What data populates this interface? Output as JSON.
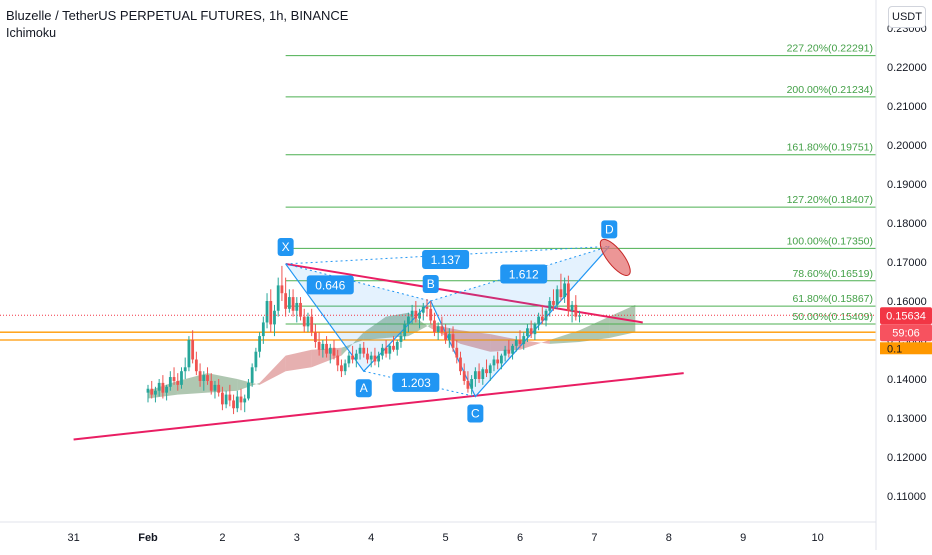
{
  "header": {
    "title": "Bluzelle / TetherUS PERPETUAL FUTURES, 1h, BINANCE",
    "indicator": "Ichimoku",
    "currency": "USDT"
  },
  "price_labels": {
    "last_price": "0.15634",
    "countdown": "59:06",
    "hidden_price": "0.1"
  },
  "colors": {
    "up_candle": "#26a69a",
    "down_candle": "#ef5350",
    "fib_line": "#4caf50",
    "fib_label": "#43a047",
    "trendline": "#e91e63",
    "pattern": "#2196f3",
    "cloud_bull": "#1b5e20",
    "cloud_bear": "#b71c1c",
    "price_tag": "#f23645"
  },
  "chart_data": {
    "type": "candlestick",
    "title": "Bluzelle / TetherUS PERPETUAL FUTURES, 1h, BINANCE",
    "xlabel": "",
    "ylabel": "",
    "ylim": [
      0.104,
      0.232
    ],
    "x_ticks": [
      "31",
      "Feb",
      "2",
      "3",
      "4",
      "5",
      "6",
      "7",
      "8",
      "9",
      "10"
    ],
    "y_ticks": [
      "0.23000",
      "0.22000",
      "0.21000",
      "0.20000",
      "0.19000",
      "0.18000",
      "0.17000",
      "0.16000",
      "0.15000",
      "0.14000",
      "0.13000",
      "0.12000",
      "0.11000"
    ],
    "grid": false,
    "last_price": 0.15634,
    "candles": [
      {
        "d": 0.0,
        "o": 0.1365,
        "h": 0.1385,
        "l": 0.134,
        "c": 0.1375
      },
      {
        "d": 0.05,
        "o": 0.1375,
        "h": 0.1395,
        "l": 0.135,
        "c": 0.136
      },
      {
        "d": 0.1,
        "o": 0.136,
        "h": 0.138,
        "l": 0.134,
        "c": 0.137
      },
      {
        "d": 0.15,
        "o": 0.137,
        "h": 0.14,
        "l": 0.1355,
        "c": 0.139
      },
      {
        "d": 0.2,
        "o": 0.139,
        "h": 0.141,
        "l": 0.135,
        "c": 0.1365
      },
      {
        "d": 0.25,
        "o": 0.1365,
        "h": 0.1385,
        "l": 0.1345,
        "c": 0.138
      },
      {
        "d": 0.3,
        "o": 0.138,
        "h": 0.142,
        "l": 0.137,
        "c": 0.1405
      },
      {
        "d": 0.35,
        "o": 0.1405,
        "h": 0.143,
        "l": 0.1385,
        "c": 0.1395
      },
      {
        "d": 0.4,
        "o": 0.1395,
        "h": 0.1415,
        "l": 0.137,
        "c": 0.1385
      },
      {
        "d": 0.45,
        "o": 0.1385,
        "h": 0.143,
        "l": 0.1375,
        "c": 0.142
      },
      {
        "d": 0.5,
        "o": 0.142,
        "h": 0.1455,
        "l": 0.14,
        "c": 0.143
      },
      {
        "d": 0.55,
        "o": 0.143,
        "h": 0.151,
        "l": 0.142,
        "c": 0.15
      },
      {
        "d": 0.6,
        "o": 0.15,
        "h": 0.1525,
        "l": 0.144,
        "c": 0.145
      },
      {
        "d": 0.65,
        "o": 0.145,
        "h": 0.147,
        "l": 0.141,
        "c": 0.142
      },
      {
        "d": 0.7,
        "o": 0.142,
        "h": 0.144,
        "l": 0.138,
        "c": 0.1395
      },
      {
        "d": 0.75,
        "o": 0.1395,
        "h": 0.142,
        "l": 0.137,
        "c": 0.141
      },
      {
        "d": 0.8,
        "o": 0.141,
        "h": 0.143,
        "l": 0.1385,
        "c": 0.1395
      },
      {
        "d": 0.85,
        "o": 0.1395,
        "h": 0.1415,
        "l": 0.136,
        "c": 0.137
      },
      {
        "d": 0.9,
        "o": 0.137,
        "h": 0.1395,
        "l": 0.135,
        "c": 0.1385
      },
      {
        "d": 0.95,
        "o": 0.1385,
        "h": 0.14,
        "l": 0.1355,
        "c": 0.1365
      },
      {
        "d": 1.0,
        "o": 0.1365,
        "h": 0.138,
        "l": 0.132,
        "c": 0.1335
      },
      {
        "d": 1.05,
        "o": 0.1335,
        "h": 0.137,
        "l": 0.1325,
        "c": 0.136
      },
      {
        "d": 1.1,
        "o": 0.136,
        "h": 0.1385,
        "l": 0.133,
        "c": 0.1345
      },
      {
        "d": 1.15,
        "o": 0.1345,
        "h": 0.136,
        "l": 0.131,
        "c": 0.1325
      },
      {
        "d": 1.2,
        "o": 0.1325,
        "h": 0.137,
        "l": 0.1315,
        "c": 0.1355
      },
      {
        "d": 1.25,
        "o": 0.1355,
        "h": 0.1375,
        "l": 0.132,
        "c": 0.134
      },
      {
        "d": 1.3,
        "o": 0.134,
        "h": 0.136,
        "l": 0.1315,
        "c": 0.135
      },
      {
        "d": 1.35,
        "o": 0.135,
        "h": 0.14,
        "l": 0.1345,
        "c": 0.139
      },
      {
        "d": 1.4,
        "o": 0.139,
        "h": 0.144,
        "l": 0.138,
        "c": 0.143
      },
      {
        "d": 1.45,
        "o": 0.143,
        "h": 0.148,
        "l": 0.142,
        "c": 0.147
      },
      {
        "d": 1.5,
        "o": 0.147,
        "h": 0.152,
        "l": 0.1455,
        "c": 0.151
      },
      {
        "d": 1.55,
        "o": 0.151,
        "h": 0.156,
        "l": 0.149,
        "c": 0.1545
      },
      {
        "d": 1.6,
        "o": 0.1545,
        "h": 0.162,
        "l": 0.153,
        "c": 0.16
      },
      {
        "d": 1.65,
        "o": 0.16,
        "h": 0.163,
        "l": 0.152,
        "c": 0.154
      },
      {
        "d": 1.7,
        "o": 0.154,
        "h": 0.159,
        "l": 0.151,
        "c": 0.1575
      },
      {
        "d": 1.75,
        "o": 0.1575,
        "h": 0.166,
        "l": 0.156,
        "c": 0.164
      },
      {
        "d": 1.8,
        "o": 0.164,
        "h": 0.169,
        "l": 0.16,
        "c": 0.162
      },
      {
        "d": 1.85,
        "o": 0.162,
        "h": 0.166,
        "l": 0.156,
        "c": 0.158
      },
      {
        "d": 1.9,
        "o": 0.158,
        "h": 0.163,
        "l": 0.157,
        "c": 0.161
      },
      {
        "d": 1.95,
        "o": 0.161,
        "h": 0.163,
        "l": 0.156,
        "c": 0.1575
      },
      {
        "d": 2.0,
        "o": 0.1575,
        "h": 0.161,
        "l": 0.1545,
        "c": 0.1595
      },
      {
        "d": 2.05,
        "o": 0.1595,
        "h": 0.161,
        "l": 0.155,
        "c": 0.156
      },
      {
        "d": 2.1,
        "o": 0.156,
        "h": 0.158,
        "l": 0.152,
        "c": 0.1535
      },
      {
        "d": 2.15,
        "o": 0.1535,
        "h": 0.157,
        "l": 0.152,
        "c": 0.156
      },
      {
        "d": 2.2,
        "o": 0.156,
        "h": 0.158,
        "l": 0.151,
        "c": 0.152
      },
      {
        "d": 2.25,
        "o": 0.152,
        "h": 0.154,
        "l": 0.148,
        "c": 0.1495
      },
      {
        "d": 2.3,
        "o": 0.1495,
        "h": 0.152,
        "l": 0.146,
        "c": 0.1475
      },
      {
        "d": 2.35,
        "o": 0.1475,
        "h": 0.15,
        "l": 0.1455,
        "c": 0.149
      },
      {
        "d": 2.4,
        "o": 0.149,
        "h": 0.151,
        "l": 0.1455,
        "c": 0.1465
      },
      {
        "d": 2.45,
        "o": 0.1465,
        "h": 0.149,
        "l": 0.144,
        "c": 0.148
      },
      {
        "d": 2.5,
        "o": 0.148,
        "h": 0.15,
        "l": 0.145,
        "c": 0.146
      },
      {
        "d": 2.55,
        "o": 0.146,
        "h": 0.1475,
        "l": 0.142,
        "c": 0.1435
      },
      {
        "d": 2.6,
        "o": 0.1435,
        "h": 0.145,
        "l": 0.1405,
        "c": 0.142
      },
      {
        "d": 2.65,
        "o": 0.142,
        "h": 0.145,
        "l": 0.141,
        "c": 0.144
      },
      {
        "d": 2.7,
        "o": 0.144,
        "h": 0.147,
        "l": 0.143,
        "c": 0.146
      },
      {
        "d": 2.75,
        "o": 0.146,
        "h": 0.1485,
        "l": 0.144,
        "c": 0.145
      },
      {
        "d": 2.8,
        "o": 0.145,
        "h": 0.1475,
        "l": 0.143,
        "c": 0.1465
      },
      {
        "d": 2.85,
        "o": 0.1465,
        "h": 0.149,
        "l": 0.145,
        "c": 0.148
      },
      {
        "d": 2.9,
        "o": 0.148,
        "h": 0.1495,
        "l": 0.1455,
        "c": 0.1465
      },
      {
        "d": 2.95,
        "o": 0.1465,
        "h": 0.148,
        "l": 0.144,
        "c": 0.145
      },
      {
        "d": 3.0,
        "o": 0.145,
        "h": 0.147,
        "l": 0.143,
        "c": 0.146
      },
      {
        "d": 3.05,
        "o": 0.146,
        "h": 0.148,
        "l": 0.1435,
        "c": 0.1445
      },
      {
        "d": 3.1,
        "o": 0.1445,
        "h": 0.147,
        "l": 0.143,
        "c": 0.146
      },
      {
        "d": 3.15,
        "o": 0.146,
        "h": 0.149,
        "l": 0.145,
        "c": 0.148
      },
      {
        "d": 3.2,
        "o": 0.148,
        "h": 0.15,
        "l": 0.1455,
        "c": 0.1465
      },
      {
        "d": 3.25,
        "o": 0.1465,
        "h": 0.149,
        "l": 0.145,
        "c": 0.1485
      },
      {
        "d": 3.3,
        "o": 0.1485,
        "h": 0.151,
        "l": 0.147,
        "c": 0.1475
      },
      {
        "d": 3.35,
        "o": 0.1475,
        "h": 0.15,
        "l": 0.146,
        "c": 0.1495
      },
      {
        "d": 3.4,
        "o": 0.1495,
        "h": 0.152,
        "l": 0.148,
        "c": 0.151
      },
      {
        "d": 3.45,
        "o": 0.151,
        "h": 0.155,
        "l": 0.15,
        "c": 0.154
      },
      {
        "d": 3.5,
        "o": 0.154,
        "h": 0.157,
        "l": 0.152,
        "c": 0.156
      },
      {
        "d": 3.55,
        "o": 0.156,
        "h": 0.159,
        "l": 0.154,
        "c": 0.1575
      },
      {
        "d": 3.6,
        "o": 0.1575,
        "h": 0.16,
        "l": 0.1545,
        "c": 0.1555
      },
      {
        "d": 3.65,
        "o": 0.1555,
        "h": 0.158,
        "l": 0.153,
        "c": 0.157
      },
      {
        "d": 3.7,
        "o": 0.157,
        "h": 0.1595,
        "l": 0.155,
        "c": 0.1585
      },
      {
        "d": 3.75,
        "o": 0.1585,
        "h": 0.1605,
        "l": 0.156,
        "c": 0.158
      },
      {
        "d": 3.8,
        "o": 0.158,
        "h": 0.16,
        "l": 0.154,
        "c": 0.155
      },
      {
        "d": 3.85,
        "o": 0.155,
        "h": 0.157,
        "l": 0.151,
        "c": 0.152
      },
      {
        "d": 3.9,
        "o": 0.152,
        "h": 0.1545,
        "l": 0.15,
        "c": 0.1535
      },
      {
        "d": 3.95,
        "o": 0.1535,
        "h": 0.156,
        "l": 0.151,
        "c": 0.152
      },
      {
        "d": 4.0,
        "o": 0.152,
        "h": 0.154,
        "l": 0.149,
        "c": 0.15
      },
      {
        "d": 4.05,
        "o": 0.15,
        "h": 0.153,
        "l": 0.148,
        "c": 0.1515
      },
      {
        "d": 4.1,
        "o": 0.1515,
        "h": 0.1535,
        "l": 0.147,
        "c": 0.148
      },
      {
        "d": 4.15,
        "o": 0.148,
        "h": 0.15,
        "l": 0.144,
        "c": 0.1455
      },
      {
        "d": 4.2,
        "o": 0.1455,
        "h": 0.147,
        "l": 0.141,
        "c": 0.142
      },
      {
        "d": 4.25,
        "o": 0.142,
        "h": 0.144,
        "l": 0.1385,
        "c": 0.1395
      },
      {
        "d": 4.3,
        "o": 0.1395,
        "h": 0.142,
        "l": 0.1365,
        "c": 0.1375
      },
      {
        "d": 4.35,
        "o": 0.1375,
        "h": 0.141,
        "l": 0.136,
        "c": 0.14
      },
      {
        "d": 4.4,
        "o": 0.14,
        "h": 0.143,
        "l": 0.138,
        "c": 0.142
      },
      {
        "d": 4.45,
        "o": 0.142,
        "h": 0.144,
        "l": 0.139,
        "c": 0.14
      },
      {
        "d": 4.5,
        "o": 0.14,
        "h": 0.143,
        "l": 0.1385,
        "c": 0.1425
      },
      {
        "d": 4.55,
        "o": 0.1425,
        "h": 0.145,
        "l": 0.1405,
        "c": 0.1415
      },
      {
        "d": 4.6,
        "o": 0.1415,
        "h": 0.144,
        "l": 0.1395,
        "c": 0.1435
      },
      {
        "d": 4.65,
        "o": 0.1435,
        "h": 0.146,
        "l": 0.142,
        "c": 0.145
      },
      {
        "d": 4.7,
        "o": 0.145,
        "h": 0.147,
        "l": 0.1425,
        "c": 0.144
      },
      {
        "d": 4.75,
        "o": 0.144,
        "h": 0.1465,
        "l": 0.1425,
        "c": 0.146
      },
      {
        "d": 4.8,
        "o": 0.146,
        "h": 0.1485,
        "l": 0.1445,
        "c": 0.1475
      },
      {
        "d": 4.85,
        "o": 0.1475,
        "h": 0.15,
        "l": 0.1455,
        "c": 0.1465
      },
      {
        "d": 4.9,
        "o": 0.1465,
        "h": 0.149,
        "l": 0.145,
        "c": 0.1485
      },
      {
        "d": 4.95,
        "o": 0.1485,
        "h": 0.151,
        "l": 0.147,
        "c": 0.15
      },
      {
        "d": 5.0,
        "o": 0.15,
        "h": 0.1525,
        "l": 0.148,
        "c": 0.149
      },
      {
        "d": 5.05,
        "o": 0.149,
        "h": 0.152,
        "l": 0.1475,
        "c": 0.151
      },
      {
        "d": 5.1,
        "o": 0.151,
        "h": 0.154,
        "l": 0.1495,
        "c": 0.153
      },
      {
        "d": 5.15,
        "o": 0.153,
        "h": 0.155,
        "l": 0.1505,
        "c": 0.1515
      },
      {
        "d": 5.2,
        "o": 0.1515,
        "h": 0.1545,
        "l": 0.15,
        "c": 0.154
      },
      {
        "d": 5.25,
        "o": 0.154,
        "h": 0.157,
        "l": 0.1525,
        "c": 0.156
      },
      {
        "d": 5.3,
        "o": 0.156,
        "h": 0.159,
        "l": 0.154,
        "c": 0.155
      },
      {
        "d": 5.35,
        "o": 0.155,
        "h": 0.158,
        "l": 0.1535,
        "c": 0.1575
      },
      {
        "d": 5.4,
        "o": 0.1575,
        "h": 0.161,
        "l": 0.156,
        "c": 0.16
      },
      {
        "d": 5.45,
        "o": 0.16,
        "h": 0.163,
        "l": 0.1575,
        "c": 0.159
      },
      {
        "d": 5.5,
        "o": 0.159,
        "h": 0.164,
        "l": 0.158,
        "c": 0.163
      },
      {
        "d": 5.55,
        "o": 0.163,
        "h": 0.167,
        "l": 0.16,
        "c": 0.161
      },
      {
        "d": 5.6,
        "o": 0.161,
        "h": 0.166,
        "l": 0.1595,
        "c": 0.1645
      },
      {
        "d": 5.65,
        "o": 0.1645,
        "h": 0.1665,
        "l": 0.156,
        "c": 0.1575
      },
      {
        "d": 5.7,
        "o": 0.1575,
        "h": 0.16,
        "l": 0.1545,
        "c": 0.159
      },
      {
        "d": 5.75,
        "o": 0.159,
        "h": 0.1615,
        "l": 0.155,
        "c": 0.156
      },
      {
        "d": 5.8,
        "o": 0.156,
        "h": 0.1575,
        "l": 0.1545,
        "c": 0.15634
      }
    ],
    "fib_levels": [
      {
        "label": "227.20%(0.22291)",
        "value": 0.22291
      },
      {
        "label": "200.00%(0.21234)",
        "value": 0.21234
      },
      {
        "label": "161.80%(0.19751)",
        "value": 0.19751
      },
      {
        "label": "127.20%(0.18407)",
        "value": 0.18407
      },
      {
        "label": "100.00%(0.17350)",
        "value": 0.1735
      },
      {
        "label": "78.60%(0.16519)",
        "value": 0.16519
      },
      {
        "label": "61.80%(0.15867)",
        "value": 0.15867
      },
      {
        "label": "50.00%(0.15409)",
        "value": 0.15409
      }
    ],
    "fib_start_day": 1.85,
    "horizontal_lines": [
      {
        "value": 0.152,
        "color": "#ff9800"
      },
      {
        "value": 0.15,
        "color": "#ff9800"
      }
    ],
    "harmonic_points": [
      {
        "label": "X",
        "d": 1.85,
        "v": 0.1695
      },
      {
        "label": "A",
        "d": 2.9,
        "v": 0.142
      },
      {
        "label": "B",
        "d": 3.8,
        "v": 0.16
      },
      {
        "label": "C",
        "d": 4.4,
        "v": 0.1355
      },
      {
        "label": "D",
        "d": 6.2,
        "v": 0.174
      }
    ],
    "harmonic_ratios": [
      {
        "label": "0.646",
        "d": 2.45,
        "v": 0.164
      },
      {
        "label": "1.137",
        "d": 4.0,
        "v": 0.1705
      },
      {
        "label": "1.203",
        "d": 3.6,
        "v": 0.139
      },
      {
        "label": "1.612",
        "d": 5.05,
        "v": 0.1668
      }
    ],
    "trendlines": [
      {
        "d1": 1.85,
        "v1": 0.1695,
        "d2": 6.65,
        "v2": 0.1545
      },
      {
        "d1": -1.0,
        "v1": 0.1245,
        "d2": 7.2,
        "v2": 0.1415
      }
    ],
    "cloud": [
      {
        "d": 0.0,
        "a": 0.137,
        "b": 0.135
      },
      {
        "d": 0.4,
        "a": 0.1395,
        "b": 0.136
      },
      {
        "d": 0.8,
        "a": 0.1415,
        "b": 0.1365
      },
      {
        "d": 1.2,
        "a": 0.14,
        "b": 0.137
      },
      {
        "d": 1.5,
        "a": 0.1385,
        "b": 0.139
      },
      {
        "d": 1.85,
        "a": 0.142,
        "b": 0.146
      },
      {
        "d": 2.2,
        "a": 0.143,
        "b": 0.1475
      },
      {
        "d": 2.6,
        "a": 0.146,
        "b": 0.148
      },
      {
        "d": 2.9,
        "a": 0.152,
        "b": 0.15
      },
      {
        "d": 3.2,
        "a": 0.156,
        "b": 0.1505
      },
      {
        "d": 3.5,
        "a": 0.157,
        "b": 0.151
      },
      {
        "d": 3.8,
        "a": 0.153,
        "b": 0.154
      },
      {
        "d": 4.2,
        "a": 0.149,
        "b": 0.1525
      },
      {
        "d": 4.6,
        "a": 0.147,
        "b": 0.1515
      },
      {
        "d": 5.0,
        "a": 0.1475,
        "b": 0.15
      },
      {
        "d": 5.4,
        "a": 0.15,
        "b": 0.149
      },
      {
        "d": 5.8,
        "a": 0.1525,
        "b": 0.1495
      },
      {
        "d": 6.2,
        "a": 0.156,
        "b": 0.1505
      },
      {
        "d": 6.55,
        "a": 0.159,
        "b": 0.152
      }
    ]
  }
}
